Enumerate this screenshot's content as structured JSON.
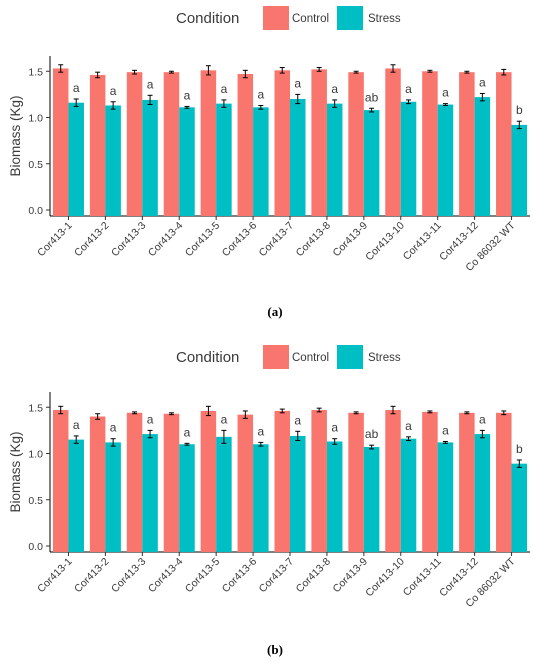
{
  "colors": {
    "control": "#F8766D",
    "stress": "#00BFC4"
  },
  "legend": {
    "title": "Condition",
    "items": [
      "Control",
      "Stress"
    ]
  },
  "chart_data": [
    {
      "type": "bar",
      "caption": "(a)",
      "categories": [
        "Cor413-1",
        "Cor413-2",
        "Cor413-3",
        "Cor413-4",
        "Cor413-5",
        "Cor413-6",
        "Cor413-7",
        "Cor413-8",
        "Cor413-9",
        "Cor413-10",
        "Cor413-11",
        "Cor413-12",
        "Co 86032 WT"
      ],
      "series": [
        {
          "name": "Control",
          "values": [
            1.53,
            1.46,
            1.49,
            1.49,
            1.51,
            1.47,
            1.51,
            1.52,
            1.49,
            1.53,
            1.5,
            1.49,
            1.49
          ],
          "errors": [
            0.04,
            0.03,
            0.02,
            0.01,
            0.05,
            0.04,
            0.03,
            0.02,
            0.01,
            0.04,
            0.01,
            0.01,
            0.03
          ]
        },
        {
          "name": "Stress",
          "values": [
            1.16,
            1.13,
            1.19,
            1.11,
            1.15,
            1.11,
            1.2,
            1.15,
            1.08,
            1.17,
            1.14,
            1.22,
            0.92
          ],
          "errors": [
            0.04,
            0.04,
            0.05,
            0.01,
            0.04,
            0.02,
            0.05,
            0.04,
            0.02,
            0.02,
            0.01,
            0.04,
            0.04
          ]
        }
      ],
      "significance": [
        "a",
        "a",
        "a",
        "a",
        "a",
        "a",
        "a",
        "a",
        "ab",
        "a",
        "a",
        "a",
        "b"
      ],
      "ylabel": "Biomass (Kg)",
      "ylim": [
        0,
        1.6
      ],
      "yticks": [
        "0.0",
        "0.5",
        "1.0",
        "1.5"
      ],
      "legend_position": "top",
      "grid": false
    },
    {
      "type": "bar",
      "caption": "(b)",
      "categories": [
        "Cor413-1",
        "Cor413-2",
        "Cor413-3",
        "Cor413-4",
        "Cor413-5",
        "Cor413-6",
        "Cor413-7",
        "Cor413-8",
        "Cor413-9",
        "Cor413-10",
        "Cor413-11",
        "Cor413-12",
        "Co 86032 WT"
      ],
      "series": [
        {
          "name": "Control",
          "values": [
            1.47,
            1.4,
            1.44,
            1.43,
            1.46,
            1.42,
            1.46,
            1.47,
            1.44,
            1.47,
            1.45,
            1.44,
            1.44
          ],
          "errors": [
            0.04,
            0.03,
            0.01,
            0.01,
            0.05,
            0.04,
            0.02,
            0.02,
            0.01,
            0.04,
            0.01,
            0.01,
            0.02
          ]
        },
        {
          "name": "Stress",
          "values": [
            1.15,
            1.12,
            1.21,
            1.1,
            1.18,
            1.1,
            1.19,
            1.13,
            1.07,
            1.16,
            1.12,
            1.21,
            0.89
          ],
          "errors": [
            0.04,
            0.04,
            0.04,
            0.01,
            0.07,
            0.02,
            0.05,
            0.03,
            0.02,
            0.02,
            0.01,
            0.04,
            0.04
          ]
        }
      ],
      "significance": [
        "a",
        "a",
        "a",
        "a",
        "a",
        "a",
        "a",
        "a",
        "ab",
        "a",
        "a",
        "a",
        "b"
      ],
      "ylabel": "Biomass (Kg)",
      "ylim": [
        0,
        1.6
      ],
      "yticks": [
        "0.0",
        "0.5",
        "1.0",
        "1.5"
      ],
      "legend_position": "top",
      "grid": false
    }
  ]
}
